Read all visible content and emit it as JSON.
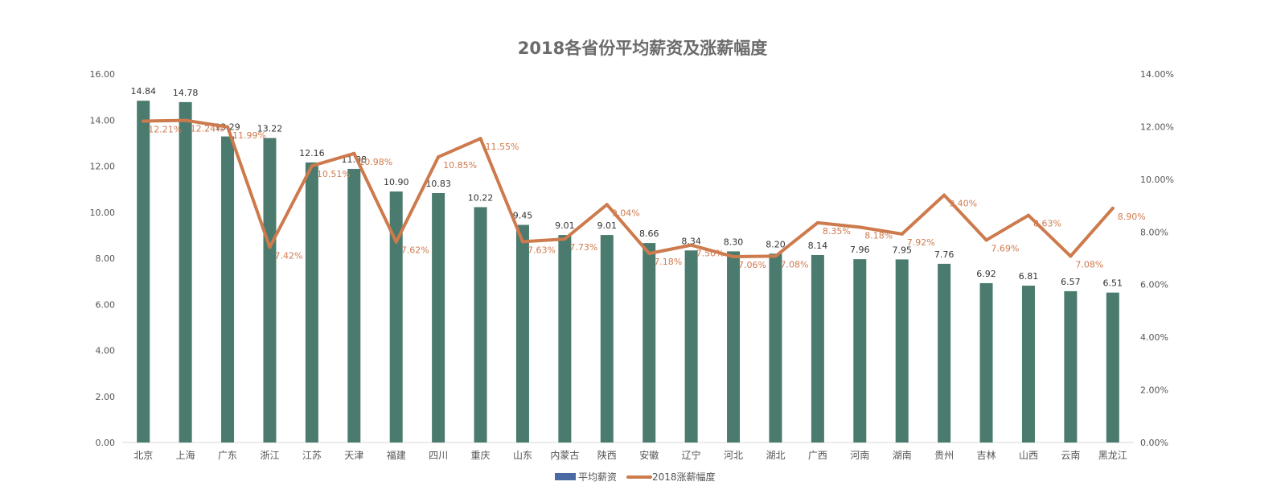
{
  "colors": {
    "bar": "#4a7b6e",
    "line": "#cd7a4d",
    "legend_bar": "#4a6aa3",
    "axis_text": "#555555"
  },
  "chart_data": {
    "type": "bar",
    "title": "2018各省份平均薪资及涨薪幅度",
    "categories": [
      "北京",
      "上海",
      "广东",
      "浙江",
      "江苏",
      "天津",
      "福建",
      "四川",
      "重庆",
      "山东",
      "内蒙古",
      "陕西",
      "安徽",
      "辽宁",
      "河北",
      "湖北",
      "广西",
      "河南",
      "湖南",
      "贵州",
      "吉林",
      "山西",
      "云南",
      "黑龙江"
    ],
    "series": [
      {
        "name": "平均薪资",
        "type": "bar",
        "axis": "left",
        "values": [
          14.84,
          14.78,
          13.29,
          13.22,
          12.16,
          11.88,
          10.9,
          10.83,
          10.22,
          9.45,
          9.01,
          9.01,
          8.66,
          8.34,
          8.3,
          8.2,
          8.14,
          7.96,
          7.95,
          7.76,
          6.92,
          6.81,
          6.57,
          6.51
        ],
        "labels": [
          "14.84",
          "14.78",
          "13.29",
          "13.22",
          "12.16",
          "11.88",
          "10.90",
          "10.83",
          "10.22",
          "9.45",
          "9.01",
          "9.01",
          "8.66",
          "8.34",
          "8.30",
          "8.20",
          "8.14",
          "7.96",
          "7.95",
          "7.76",
          "6.92",
          "6.81",
          "6.57",
          "6.51"
        ]
      },
      {
        "name": "2018涨薪幅度",
        "type": "line",
        "axis": "right",
        "values": [
          12.21,
          12.24,
          11.99,
          7.42,
          10.51,
          10.98,
          7.62,
          10.85,
          11.55,
          7.63,
          7.73,
          9.04,
          7.18,
          7.5,
          7.06,
          7.08,
          8.35,
          8.18,
          7.92,
          9.4,
          7.69,
          8.63,
          7.08,
          8.9
        ],
        "labels": [
          "12.21%",
          "12.24%",
          "11.99%",
          "7.42%",
          "10.51%",
          "10.98%",
          "7.62%",
          "10.85%",
          "11.55%",
          "7.63%",
          "7.73%",
          "9.04%",
          "7.18%",
          "7.50%",
          "7.06%",
          "7.08%",
          "8.35%",
          "8.18%",
          "7.92%",
          "9.40%",
          "7.69%",
          "8.63%",
          "7.08%",
          "8.90%"
        ]
      }
    ],
    "y_left": {
      "min": 0,
      "max": 16,
      "ticks": [
        "0.00",
        "2.00",
        "4.00",
        "6.00",
        "8.00",
        "10.00",
        "12.00",
        "14.00",
        "16.00"
      ]
    },
    "y_right": {
      "min": 0,
      "max": 14,
      "ticks": [
        "0.00%",
        "2.00%",
        "4.00%",
        "6.00%",
        "8.00%",
        "10.00%",
        "12.00%",
        "14.00%"
      ]
    },
    "grid": false,
    "legend": {
      "position": "bottom",
      "items": [
        "平均薪资",
        "2018涨薪幅度"
      ]
    }
  }
}
